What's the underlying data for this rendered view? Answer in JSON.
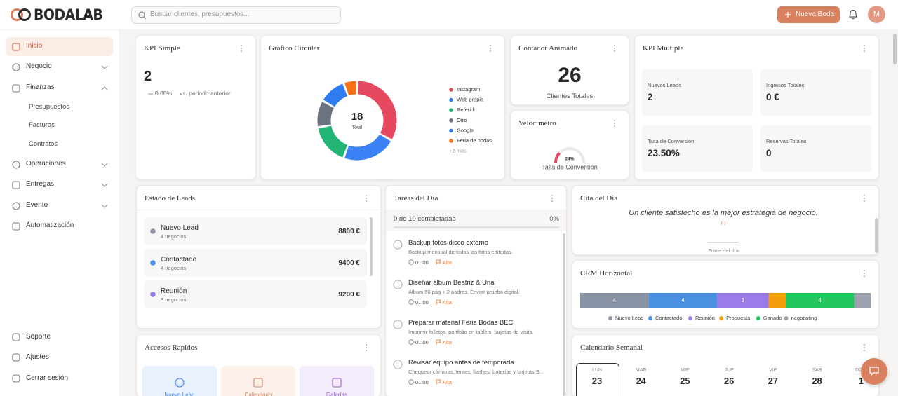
{
  "header": {
    "brand": "BODALAB",
    "search_placeholder": "Buscar clientes, presupuestos...",
    "new_button": "Nueva Boda",
    "avatar": "M"
  },
  "sidebar": {
    "items": [
      "Inicio",
      "Negocio",
      "Finanzas",
      "Operaciones",
      "Entregas",
      "Evento",
      "Automatización"
    ],
    "sub_items": [
      "Presupuestos",
      "Facturas",
      "Contratos"
    ],
    "bottom_items": [
      "Soporte",
      "Ajustes",
      "Cerrar sesión"
    ]
  },
  "kpi_simple": {
    "title": "KPI Simple",
    "value": 2,
    "change": "0.00%",
    "compare": "vs. periodo anterior"
  },
  "counter": {
    "title": "Contador Animado",
    "value": 26,
    "label": "Clientes Totales"
  },
  "kpi_multiple": {
    "title": "KPI Multiple",
    "items": [
      {
        "label": "Nuevos Leads",
        "value": "2"
      },
      {
        "label": "Ingresos Totales",
        "value": "0 €"
      },
      {
        "label": "Tasa de Conversión",
        "value": "23.50%"
      },
      {
        "label": "Reservas Totales",
        "value": "0"
      }
    ]
  },
  "leads": {
    "title": "Estado de Leads",
    "rows": [
      {
        "name": "Nuevo Lead",
        "count": "4 negocios",
        "amount": "8800 €",
        "color": "#8a93a6"
      },
      {
        "name": "Contactado",
        "count": "4 negocios",
        "amount": "9400 €",
        "color": "#4a90e2"
      },
      {
        "name": "Reunión",
        "count": "3 negocios",
        "amount": "9200 €",
        "color": "#9b7be8"
      }
    ]
  },
  "tasks": {
    "title": "Tareas del Dia",
    "progress": "0 de 10 completadas",
    "percent": "0%",
    "items": [
      {
        "title": "Backup fotos disco externo",
        "desc": "Backup mensual de todas las fotos editadas.",
        "time": "01:00",
        "priority": "Alta"
      },
      {
        "title": "Diseñar álbum Beatriz & Unai",
        "desc": "Álbum 50 pág + 2 padres. Enviar prueba digital.",
        "time": "01:00",
        "priority": "Alta"
      },
      {
        "title": "Preparar material Feria Bodas BEC",
        "desc": "Imprimir folletos, portfolio en tablets, tarjetas de visita.",
        "time": "01:00",
        "priority": "Alta"
      },
      {
        "title": "Revisar equipo antes de temporada",
        "desc": "Chequear cámaras, lentes, flashes, baterías y tarjetas S...",
        "time": "01:00",
        "priority": "Alta"
      }
    ]
  },
  "quote": {
    "title": "Cita del Dia",
    "text": "Un cliente satisfecho es la mejor estrategia de negocio.",
    "caption": "Frase del día"
  },
  "quick_access": {
    "title": "Accesos Rapidos",
    "items": [
      "Nuevo Lead",
      "Calendario",
      "Galerías"
    ]
  },
  "calendar": {
    "title": "Calendario Semanal",
    "days": [
      {
        "dow": "LUN",
        "day": "23"
      },
      {
        "dow": "MAR",
        "day": "24"
      },
      {
        "dow": "MIÉ",
        "day": "25"
      },
      {
        "dow": "JUE",
        "day": "26"
      },
      {
        "dow": "VIE",
        "day": "27"
      },
      {
        "dow": "SÁB",
        "day": "28"
      },
      {
        "dow": "DOM",
        "day": "1"
      }
    ]
  },
  "chart_data": [
    {
      "type": "pie",
      "title": "Grafico Circular",
      "center_value": 18,
      "center_label": "Total",
      "categories": [
        "Instagram",
        "Web propia",
        "Referido",
        "Otro",
        "Google",
        "Feria de bodas"
      ],
      "values": [
        6,
        4,
        3,
        2,
        2,
        1
      ],
      "colors": [
        "#e5485f",
        "#3b82f6",
        "#22b573",
        "#6b7280",
        "#2f7cf0",
        "#f97316"
      ],
      "more_label": "+2 más"
    },
    {
      "type": "gauge",
      "title": "Velocimetro",
      "categories": [
        "Tasa de Conversión"
      ],
      "values": [
        24
      ],
      "value_labels": [
        "24%"
      ],
      "ylim": [
        0,
        100
      ],
      "color": "#e5485f"
    },
    {
      "type": "stacked-bar",
      "title": "CRM Horizontal",
      "categories": [
        "Nuevo Lead",
        "Contactado",
        "Reunión",
        "Propuesta",
        "Ganado",
        "negotiating"
      ],
      "values": [
        4,
        4,
        3,
        1,
        4,
        1
      ],
      "colors": [
        "#8a93a6",
        "#4a90e2",
        "#9b7be8",
        "#f59e0b",
        "#22c55e",
        "#9ca3af"
      ]
    }
  ]
}
